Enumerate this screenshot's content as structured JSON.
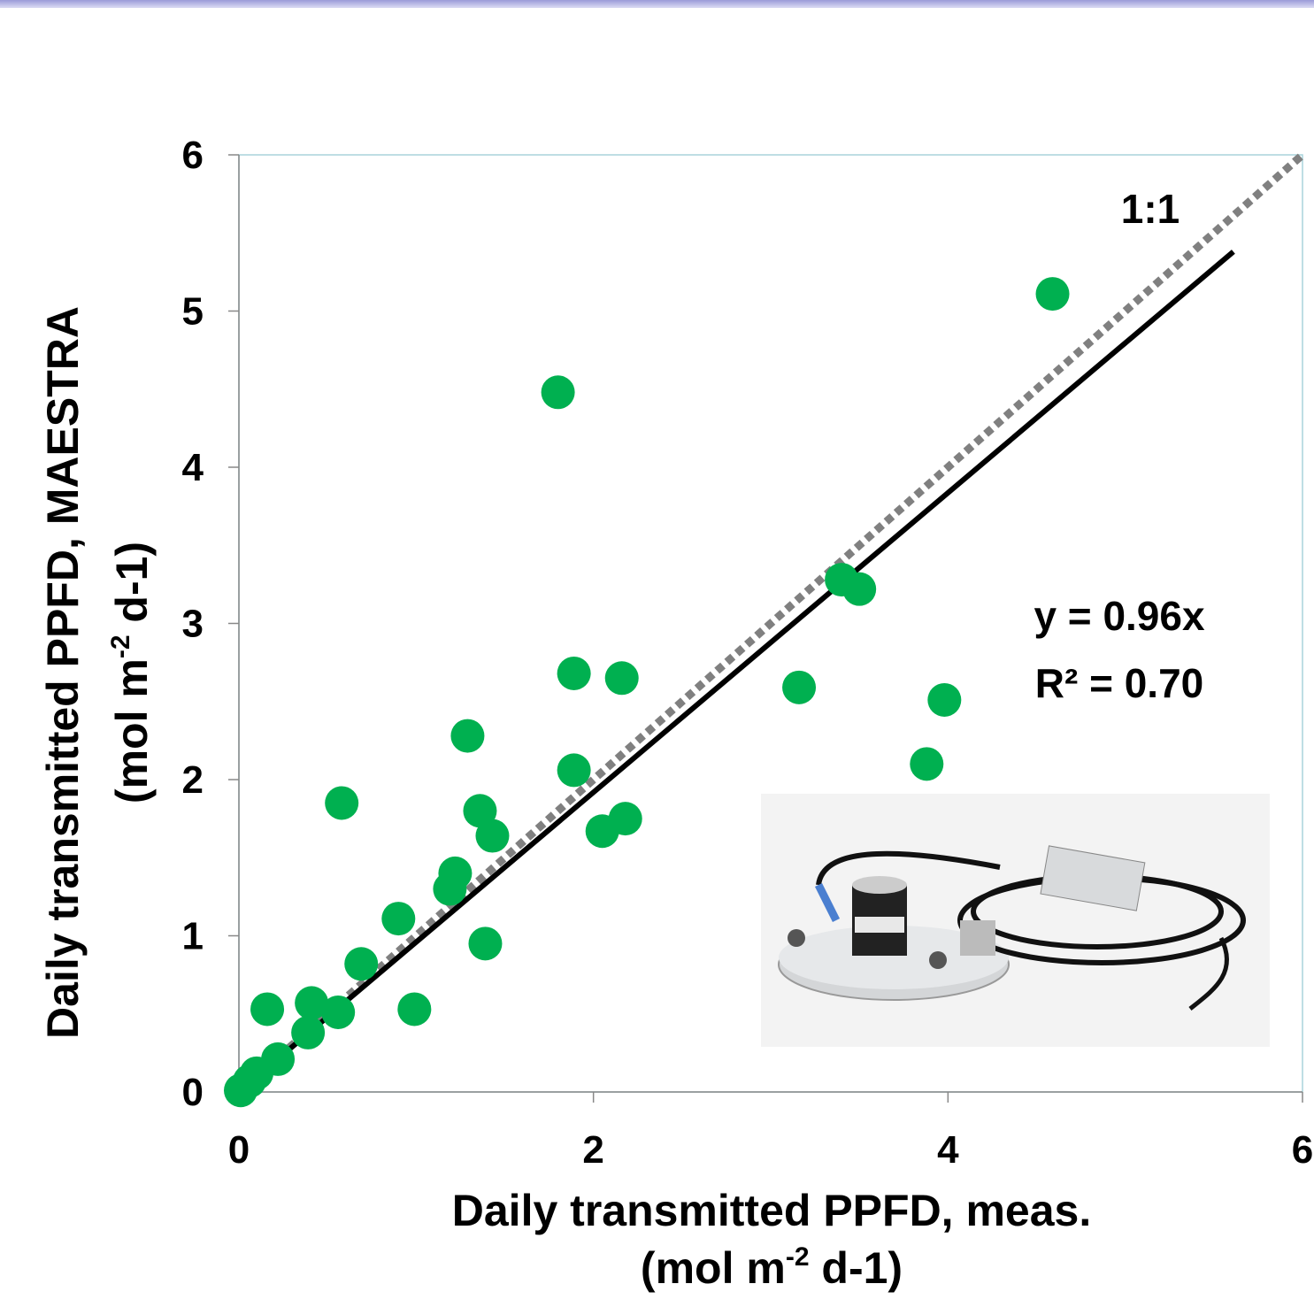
{
  "chart_data": {
    "type": "scatter",
    "xlabel": [
      "Daily transmitted PPFD, meas.",
      "(mol m",
      "-2",
      " d-1)"
    ],
    "ylabel": [
      "Daily transmitted PPFD, MAESTRA",
      "(mol m",
      "-2",
      " d-1)"
    ],
    "x": [
      4.59,
      1.8,
      3.4,
      3.5,
      1.89,
      2.16,
      3.16,
      3.98,
      1.29,
      1.89,
      3.88,
      0.58,
      1.36,
      1.43,
      2.05,
      2.18,
      1.22,
      1.19,
      0.9,
      1.39,
      0.69,
      0.16,
      0.41,
      0.56,
      0.99,
      0.39,
      0.22,
      0.1,
      0.01,
      0.06
    ],
    "series": [
      {
        "color": "#00b050",
        "values": [
          5.11,
          4.48,
          3.28,
          3.22,
          2.68,
          2.65,
          2.59,
          2.51,
          2.28,
          2.06,
          2.1,
          1.85,
          1.8,
          1.64,
          1.67,
          1.75,
          1.4,
          1.3,
          1.11,
          0.95,
          0.82,
          0.53,
          0.57,
          0.51,
          0.53,
          0.38,
          0.21,
          0.12,
          0.01,
          0.07
        ]
      }
    ],
    "lines": [
      {
        "x": [
          0,
          6
        ],
        "values": [
          0,
          6
        ],
        "color": "#808080",
        "dashed": true
      },
      {
        "x": [
          0.02,
          5.61
        ],
        "values": [
          0.02,
          5.38
        ],
        "color": "#000000",
        "dashed": false
      }
    ],
    "annotations": [
      "1:1",
      "y = 0.96x",
      "R² = 0.70"
    ],
    "xlim": [
      0,
      6
    ],
    "ylim": [
      0,
      6
    ],
    "xticks": [
      0,
      2,
      4,
      6
    ],
    "yticks": [
      0,
      1,
      2,
      3,
      4,
      5,
      6
    ]
  }
}
